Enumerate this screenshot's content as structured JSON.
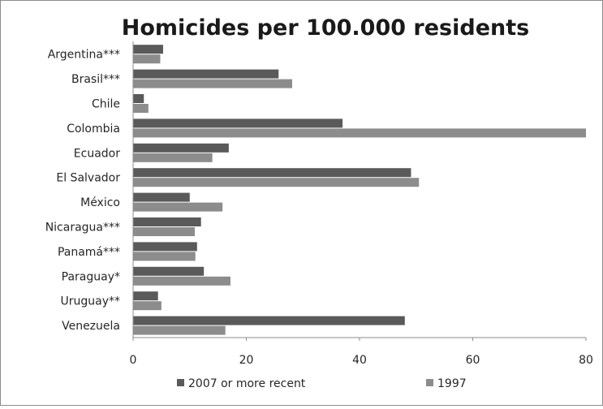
{
  "chart_data": {
    "type": "bar",
    "orientation": "horizontal",
    "title": "Homicides per 100.000 residents",
    "xlabel": "",
    "ylabel": "",
    "xlim": [
      0,
      80
    ],
    "xticks": [
      "0",
      "20",
      "40",
      "60",
      "80"
    ],
    "grid": false,
    "legend_position": "bottom",
    "categories": [
      "Argentina***",
      "Brasil***",
      "Chile",
      "Colombia",
      "Ecuador",
      "El Salvador",
      "México",
      "Nicaragua***",
      "Panamá***",
      "Paraguay*",
      "Uruguay**",
      "Venezuela"
    ],
    "series": [
      {
        "name": "2007 or more recent",
        "color": "#5a5a5a",
        "values": [
          5.3,
          25.7,
          1.9,
          37.0,
          16.9,
          49.1,
          10.0,
          12.0,
          11.3,
          12.5,
          4.4,
          48.0
        ]
      },
      {
        "name": "1997",
        "color": "#8c8c8c",
        "values": [
          4.8,
          28.1,
          2.7,
          80.0,
          14.0,
          50.5,
          15.8,
          10.9,
          11.0,
          17.2,
          5.0,
          16.3
        ]
      }
    ]
  }
}
